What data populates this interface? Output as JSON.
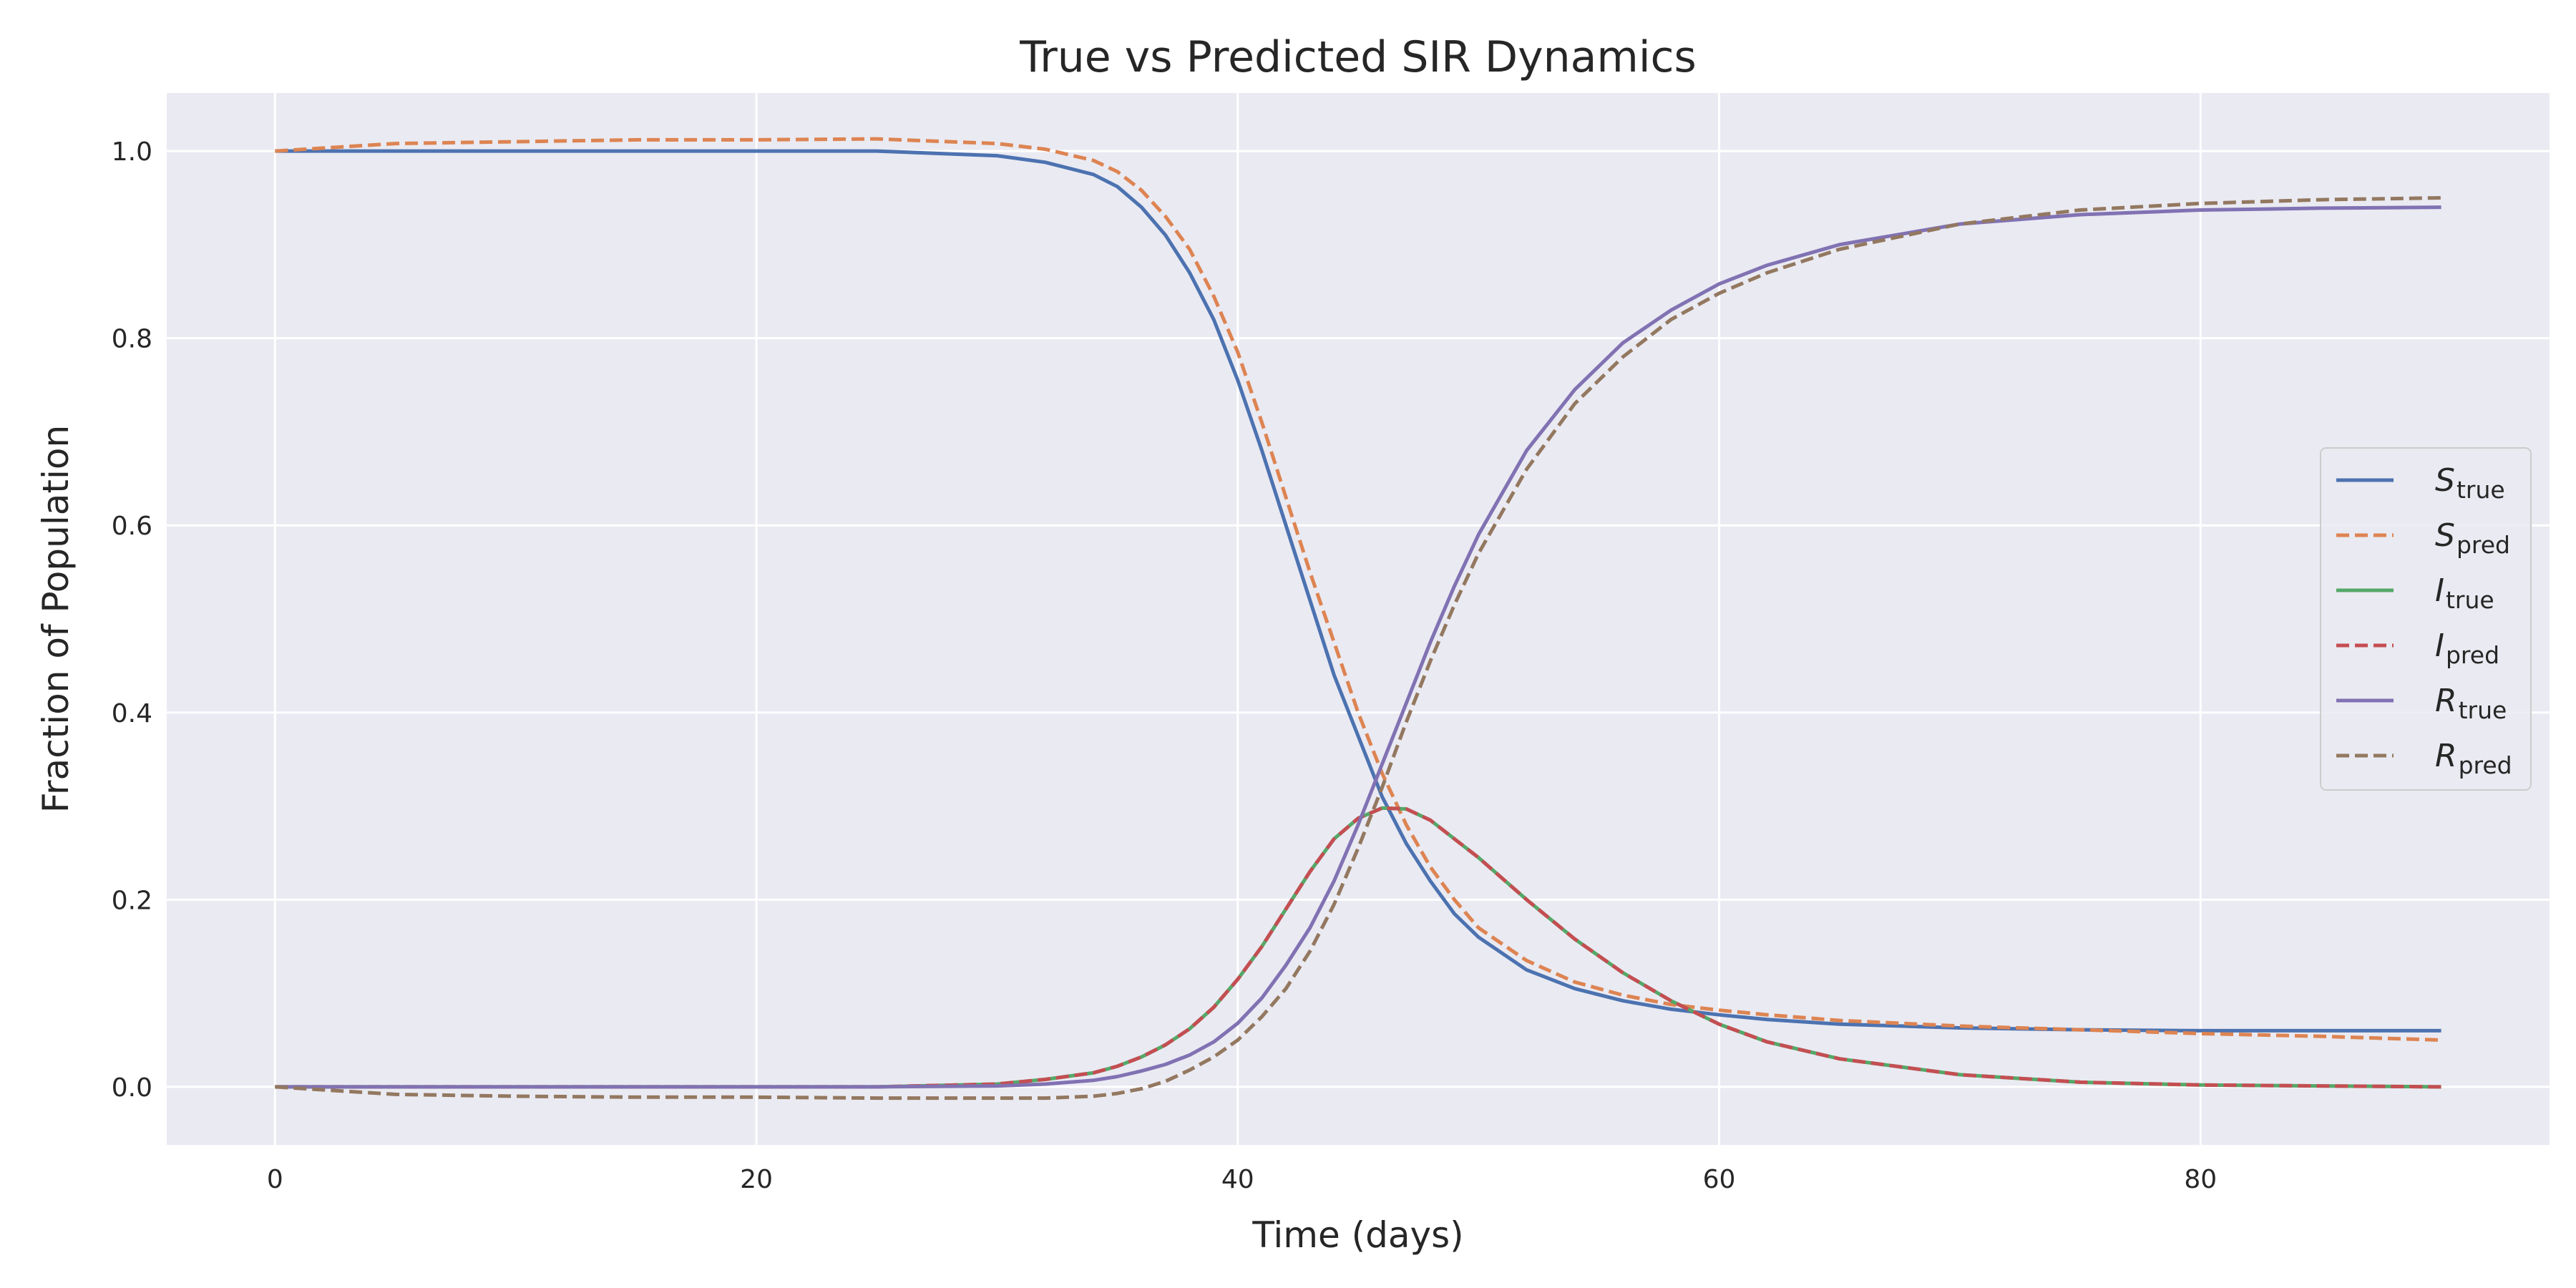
{
  "chart_data": {
    "type": "line",
    "title": "True vs Predicted SIR Dynamics",
    "xlabel": "Time (days)",
    "ylabel": "Fraction of Population",
    "xlim": [
      -4.5,
      94.5
    ],
    "ylim": [
      -0.062,
      1.062
    ],
    "x_ticks": [
      0,
      20,
      40,
      60,
      80
    ],
    "y_ticks": [
      0.0,
      0.2,
      0.4,
      0.6,
      0.8,
      1.0
    ],
    "x_tick_labels": [
      "0",
      "20",
      "40",
      "60",
      "80"
    ],
    "y_tick_labels": [
      "0.0",
      "0.2",
      "0.4",
      "0.6",
      "0.8",
      "1.0"
    ],
    "grid": true,
    "legend_position": "center-right",
    "x": [
      0,
      5,
      10,
      15,
      20,
      25,
      30,
      32,
      34,
      35,
      36,
      37,
      38,
      39,
      40,
      41,
      42,
      43,
      44,
      45,
      46,
      47,
      48,
      49,
      50,
      52,
      54,
      56,
      58,
      60,
      62,
      65,
      70,
      75,
      80,
      85,
      90
    ],
    "series": [
      {
        "name": "S",
        "subscript": "true",
        "color": "#4c72b0",
        "dash": "solid",
        "values": [
          1.0,
          1.0,
          1.0,
          1.0,
          1.0,
          1.0,
          0.995,
          0.988,
          0.975,
          0.962,
          0.94,
          0.91,
          0.87,
          0.82,
          0.755,
          0.68,
          0.6,
          0.52,
          0.44,
          0.375,
          0.31,
          0.26,
          0.22,
          0.185,
          0.16,
          0.125,
          0.105,
          0.092,
          0.083,
          0.077,
          0.072,
          0.067,
          0.063,
          0.061,
          0.06,
          0.06,
          0.06
        ]
      },
      {
        "name": "S",
        "subscript": "pred",
        "color": "#dd8452",
        "dash": "dashed",
        "values": [
          1.0,
          1.008,
          1.01,
          1.012,
          1.012,
          1.013,
          1.008,
          1.002,
          0.99,
          0.978,
          0.958,
          0.93,
          0.895,
          0.845,
          0.785,
          0.71,
          0.63,
          0.55,
          0.475,
          0.4,
          0.335,
          0.28,
          0.235,
          0.2,
          0.17,
          0.135,
          0.112,
          0.098,
          0.088,
          0.082,
          0.077,
          0.071,
          0.065,
          0.061,
          0.057,
          0.054,
          0.05
        ]
      },
      {
        "name": "I",
        "subscript": "true",
        "color": "#55a868",
        "dash": "solid",
        "values": [
          0.0,
          0.0,
          0.0,
          0.0,
          0.0,
          0.0,
          0.003,
          0.008,
          0.015,
          0.022,
          0.032,
          0.045,
          0.062,
          0.085,
          0.115,
          0.15,
          0.19,
          0.23,
          0.265,
          0.287,
          0.298,
          0.297,
          0.285,
          0.265,
          0.245,
          0.2,
          0.158,
          0.122,
          0.092,
          0.067,
          0.048,
          0.03,
          0.013,
          0.005,
          0.002,
          0.001,
          0.0
        ]
      },
      {
        "name": "I",
        "subscript": "pred",
        "color": "#c44e52",
        "dash": "dashed",
        "values": [
          0.0,
          0.0,
          0.0,
          0.0,
          0.0,
          0.0,
          0.003,
          0.008,
          0.015,
          0.022,
          0.032,
          0.045,
          0.062,
          0.085,
          0.115,
          0.15,
          0.19,
          0.23,
          0.265,
          0.287,
          0.298,
          0.297,
          0.285,
          0.265,
          0.245,
          0.2,
          0.158,
          0.122,
          0.092,
          0.067,
          0.048,
          0.03,
          0.013,
          0.005,
          0.002,
          0.001,
          0.0
        ]
      },
      {
        "name": "R",
        "subscript": "true",
        "color": "#8172b3",
        "dash": "solid",
        "values": [
          0.0,
          0.0,
          0.0,
          0.0,
          0.0,
          0.0,
          0.001,
          0.003,
          0.007,
          0.011,
          0.017,
          0.024,
          0.034,
          0.048,
          0.068,
          0.095,
          0.13,
          0.17,
          0.22,
          0.28,
          0.345,
          0.41,
          0.475,
          0.535,
          0.59,
          0.68,
          0.745,
          0.795,
          0.83,
          0.858,
          0.878,
          0.9,
          0.922,
          0.932,
          0.937,
          0.939,
          0.94
        ]
      },
      {
        "name": "R",
        "subscript": "pred",
        "color": "#937860",
        "dash": "dashed",
        "values": [
          0.0,
          -0.008,
          -0.01,
          -0.011,
          -0.011,
          -0.012,
          -0.012,
          -0.012,
          -0.01,
          -0.007,
          -0.002,
          0.006,
          0.018,
          0.032,
          0.05,
          0.075,
          0.105,
          0.145,
          0.195,
          0.255,
          0.32,
          0.39,
          0.455,
          0.515,
          0.57,
          0.66,
          0.73,
          0.78,
          0.82,
          0.848,
          0.87,
          0.895,
          0.922,
          0.937,
          0.944,
          0.948,
          0.95
        ]
      }
    ]
  }
}
